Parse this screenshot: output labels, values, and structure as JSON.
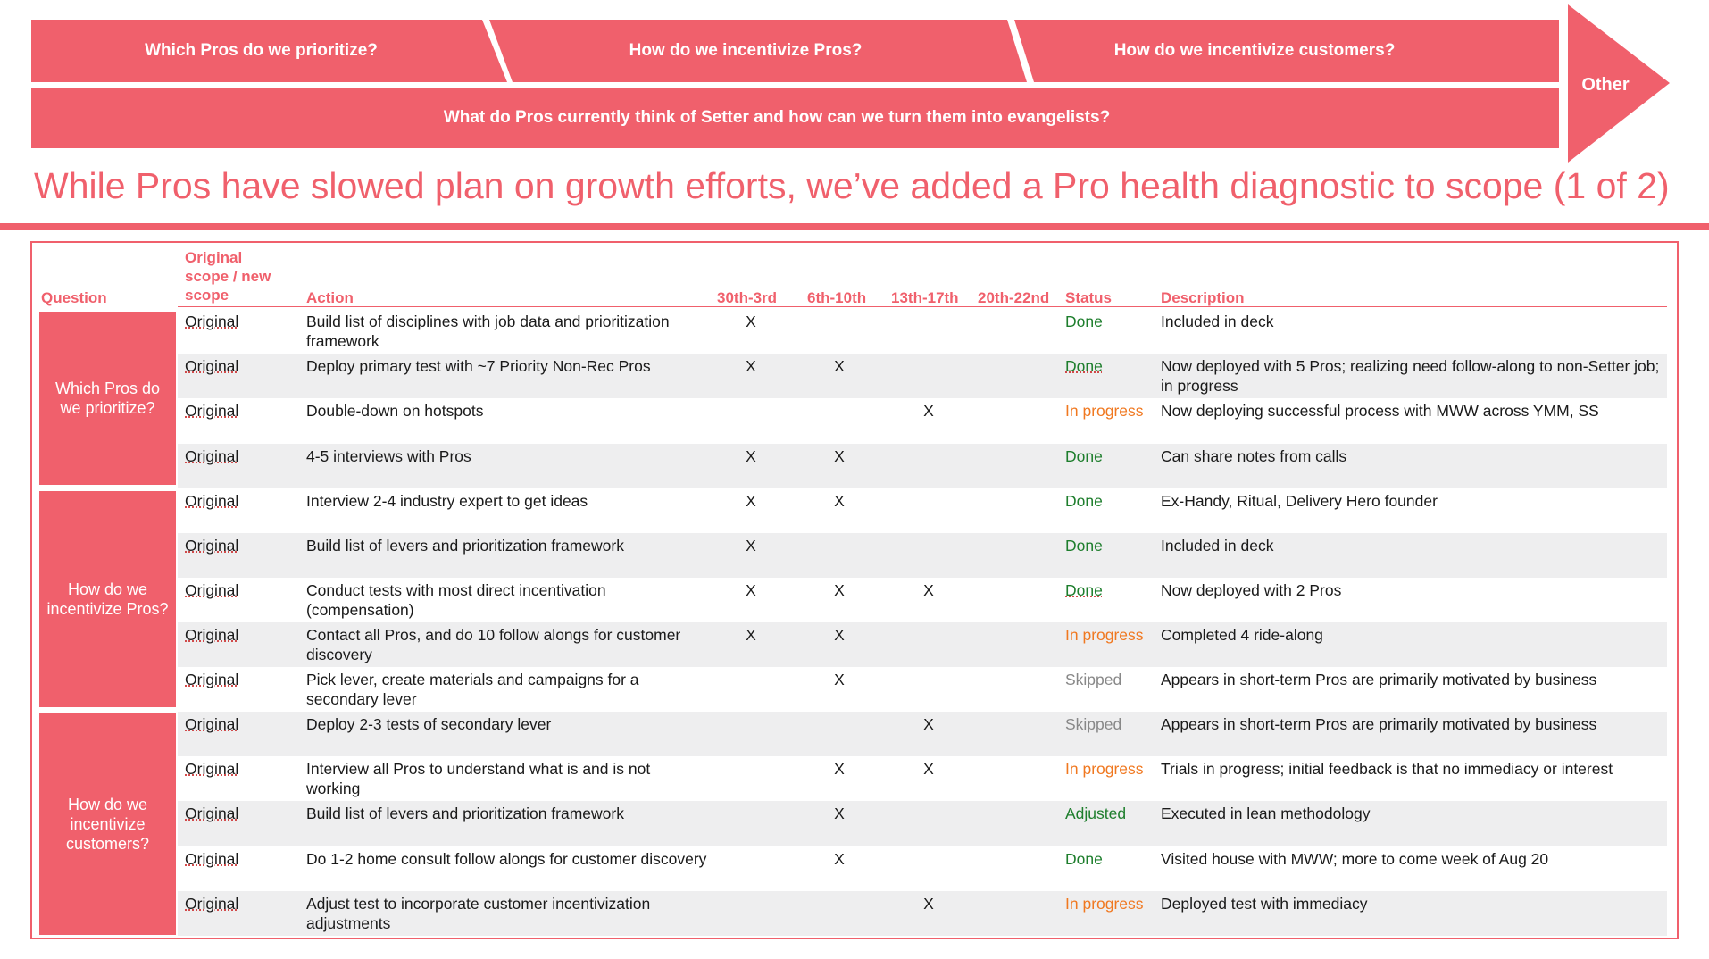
{
  "nav": {
    "chevrons": [
      "Which Pros do we prioritize?",
      "How do we incentivize Pros?",
      "How do we incentivize customers?"
    ],
    "wide_bar": "What do Pros currently think of Setter and how can we turn them into evangelists?",
    "other": "Other"
  },
  "title": "While Pros have slowed plan on growth efforts, we’ve added a Pro health diagnostic to scope (1 of 2)",
  "colors": {
    "accent": "#f0606c",
    "done": "#1e7e2d",
    "in_progress": "#f07820",
    "skipped": "#888888",
    "row_shade": "#eeeeef"
  },
  "table": {
    "headers": {
      "question": "Question",
      "scope_1": "Original",
      "scope_2": "scope / new",
      "scope_3": "scope",
      "action": "Action",
      "w1": "30th-3rd",
      "w2": "6th-10th",
      "w3": "13th-17th",
      "w4": "20th-22nd",
      "status": "Status",
      "description": "Description"
    },
    "groups": [
      {
        "line1": "Which Pros do",
        "line2": "we prioritize?",
        "line3": ""
      },
      {
        "line1": "How do we",
        "line2": "incentivize Pros?",
        "line3": ""
      },
      {
        "line1": "How do we",
        "line2": "incentivize",
        "line3": "customers?"
      }
    ],
    "rows": [
      {
        "scope": "Original",
        "action": "Build list of disciplines with job data and prioritization framework",
        "w1": "X",
        "w2": "",
        "w3": "",
        "w4": "",
        "status": "Done",
        "description": "Included in deck"
      },
      {
        "scope": "Original",
        "action": "Deploy primary test with ~7 Priority Non-Rec Pros",
        "w1": "X",
        "w2": "X",
        "w3": "",
        "w4": "",
        "status": "Done",
        "description": "Now deployed with 5 Pros; realizing need follow-along to non-Setter job; in progress"
      },
      {
        "scope": "Original",
        "action": "Double-down on hotspots",
        "w1": "",
        "w2": "",
        "w3": "X",
        "w4": "",
        "status": "In progress",
        "description": "Now deploying successful process with MWW across YMM, SS"
      },
      {
        "scope": "Original",
        "action": "4-5 interviews with Pros",
        "w1": "X",
        "w2": "X",
        "w3": "",
        "w4": "",
        "status": "Done",
        "description": "Can share notes from calls"
      },
      {
        "scope": "Original",
        "action": "Interview 2-4 industry expert to get ideas",
        "w1": "X",
        "w2": "X",
        "w3": "",
        "w4": "",
        "status": "Done",
        "description": "Ex-Handy, Ritual, Delivery Hero founder"
      },
      {
        "scope": "Original",
        "action": "Build list of levers and prioritization framework",
        "w1": "X",
        "w2": "",
        "w3": "",
        "w4": "",
        "status": "Done",
        "description": "Included in deck"
      },
      {
        "scope": "Original",
        "action": "Conduct tests with most direct incentivation (compensation)",
        "w1": "X",
        "w2": "X",
        "w3": "X",
        "w4": "",
        "status": "Done",
        "description": "Now deployed with 2 Pros"
      },
      {
        "scope": "Original",
        "action": "Contact all Pros, and do 10 follow alongs for customer discovery",
        "w1": "X",
        "w2": "X",
        "w3": "",
        "w4": "",
        "status": "In progress",
        "description": "Completed 4 ride-along"
      },
      {
        "scope": "Original",
        "action": "Pick lever, create materials and campaigns for a secondary lever",
        "w1": "",
        "w2": "X",
        "w3": "",
        "w4": "",
        "status": "Skipped",
        "description": "Appears in short-term Pros are primarily motivated by business"
      },
      {
        "scope": "Original",
        "action": "Deploy 2-3 tests of secondary lever",
        "w1": "",
        "w2": "",
        "w3": "X",
        "w4": "",
        "status": "Skipped",
        "description": "Appears in short-term Pros are primarily motivated by business"
      },
      {
        "scope": "Original",
        "action": "Interview all Pros to understand what is and is not working",
        "w1": "",
        "w2": "X",
        "w3": "X",
        "w4": "",
        "status": "In progress",
        "description": "Trials in progress; initial feedback is that no immediacy or interest"
      },
      {
        "scope": "Original",
        "action": "Build list of levers and prioritization framework",
        "w1": "",
        "w2": "X",
        "w3": "",
        "w4": "",
        "status": "Adjusted",
        "description": "Executed in lean methodology"
      },
      {
        "scope": "Original",
        "action": "Do 1-2 home consult follow alongs for customer discovery",
        "w1": "",
        "w2": "X",
        "w3": "",
        "w4": "",
        "status": "Done",
        "description": "Visited house with MWW; more to come week of Aug 20"
      },
      {
        "scope": "Original",
        "action": "Adjust test to incorporate customer incentivization adjustments",
        "w1": "",
        "w2": "",
        "w3": "X",
        "w4": "",
        "status": "In progress",
        "description": "Deployed test with immediacy"
      }
    ]
  }
}
